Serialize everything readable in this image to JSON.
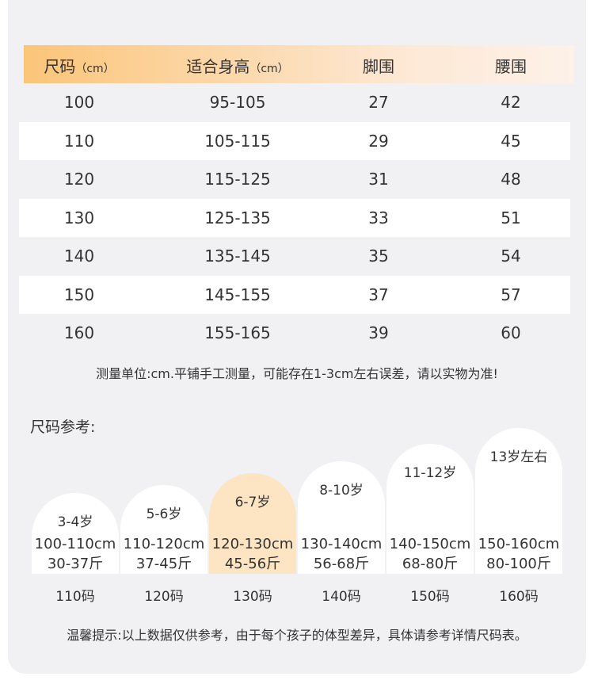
{
  "table": {
    "headers": [
      {
        "text": "尺码",
        "unit": "（cm）"
      },
      {
        "text": "适合身高",
        "unit": "（cm）"
      },
      {
        "text": "脚围"
      },
      {
        "text": "腰围"
      }
    ],
    "rows": [
      [
        "100",
        "95-105",
        "27",
        "42"
      ],
      [
        "110",
        "105-115",
        "29",
        "45"
      ],
      [
        "120",
        "115-125",
        "31",
        "48"
      ],
      [
        "130",
        "125-135",
        "33",
        "51"
      ],
      [
        "140",
        "135-145",
        "35",
        "54"
      ],
      [
        "150",
        "145-155",
        "37",
        "57"
      ],
      [
        "160",
        "155-165",
        "39",
        "60"
      ]
    ]
  },
  "note": "测量单位:cm.平铺手工测量，可能存在1-3cm左右误差，请以实物为准!",
  "reference": {
    "title": "尺码参考:",
    "items": [
      {
        "age": "3-4岁",
        "height": "100-110cm",
        "weight": "30-37斤",
        "size": "110码"
      },
      {
        "age": "5-6岁",
        "height": "110-120cm",
        "weight": "37-45斤",
        "size": "120码"
      },
      {
        "age": "6-7岁",
        "height": "120-130cm",
        "weight": "45-56斤",
        "size": "130码"
      },
      {
        "age": "8-10岁",
        "height": "130-140cm",
        "weight": "56-68斤",
        "size": "140码"
      },
      {
        "age": "11-12岁",
        "height": "140-150cm",
        "weight": "68-80斤",
        "size": "150码"
      },
      {
        "age": "13岁左右",
        "height": "150-160cm",
        "weight": "80-100斤",
        "size": "160码"
      }
    ]
  },
  "footer": "温馨提示:以上数据仅供参考，由于每个孩子的体型差异，具体请参考详情尺码表。"
}
